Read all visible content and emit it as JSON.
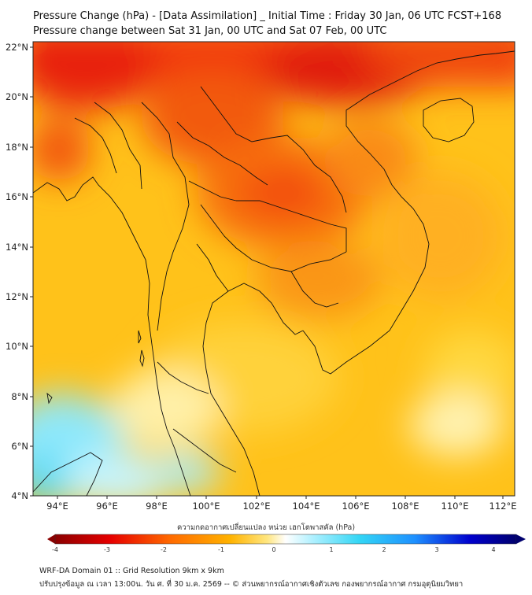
{
  "title": {
    "line1": "Pressure Change (hPa) - [Data Assimilation] _ Initial Time : Friday 30 Jan, 06 UTC FCST+168",
    "line2": "Pressure change between Sat 31 Jan, 00 UTC and Sat 07 Feb, 00 UTC"
  },
  "map": {
    "lon_ticks": [
      "94°E",
      "96°E",
      "98°E",
      "100°E",
      "102°E",
      "104°E",
      "106°E",
      "108°E",
      "110°E",
      "112°E"
    ],
    "lat_ticks": [
      "22°N",
      "20°N",
      "18°N",
      "16°N",
      "14°N",
      "12°N",
      "10°N",
      "8°N",
      "6°N",
      "4°N"
    ]
  },
  "colorbar": {
    "title": "ความกดอากาศเปลี่ยนแปลง หน่วย เฮกโตพาสคัล (hPa)",
    "ticks": [
      "-4",
      "-3",
      "-2",
      "-1",
      "0",
      "1",
      "2",
      "3",
      "4"
    ],
    "colors": {
      "neg_extreme": "#8b0000",
      "neg_strong": "#e60000",
      "neg_mid": "#ff6a00",
      "neg_weak": "#ffb300",
      "neg_faint": "#ffe680",
      "zero": "#ffffff",
      "pos_faint": "#aef0ff",
      "pos_weak": "#33d6f5",
      "pos_mid": "#1e90ff",
      "pos_strong": "#0000cd",
      "pos_extreme": "#00006e"
    }
  },
  "footer": {
    "line1": "WRF-DA Domain 01 :: Grid Resolution 9km x 9km",
    "line2": "ปรับปรุงข้อมูล ณ เวลา 13:00น. วัน ศ. ที่ 30 ม.ค. 2569 -- © ส่วนพยากรณ์อากาศเชิงตัวเลข กองพยากรณ์อากาศ กรมอุตุนิยมวิทยา"
  }
}
